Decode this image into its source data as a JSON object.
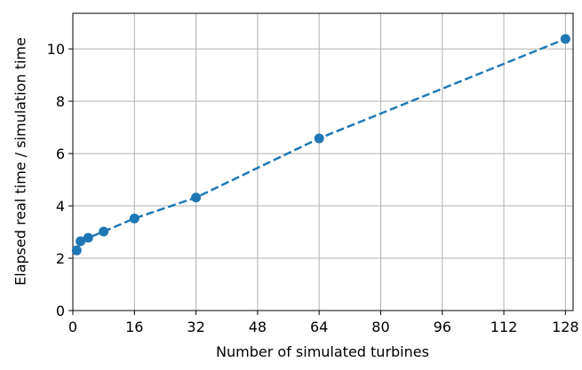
{
  "chart_data": {
    "type": "line",
    "x_label": "Number of simulated turbines",
    "y_label": "Elapsed real time / simulation time",
    "x": [
      1,
      2,
      4,
      8,
      16,
      32,
      64,
      128
    ],
    "series": [
      {
        "color": "#1f77b4",
        "values": [
          2.3,
          2.65,
          2.78,
          3.02,
          3.52,
          4.32,
          6.58,
          10.38
        ]
      }
    ],
    "xlim": [
      0,
      130
    ],
    "xticks": [
      0,
      16,
      32,
      48,
      64,
      80,
      96,
      112,
      128
    ],
    "ylim": [
      0,
      11.36
    ],
    "yticks": [
      0,
      2,
      4,
      6,
      8,
      10
    ],
    "grid": true,
    "line_style": "dashed",
    "markers": true
  }
}
